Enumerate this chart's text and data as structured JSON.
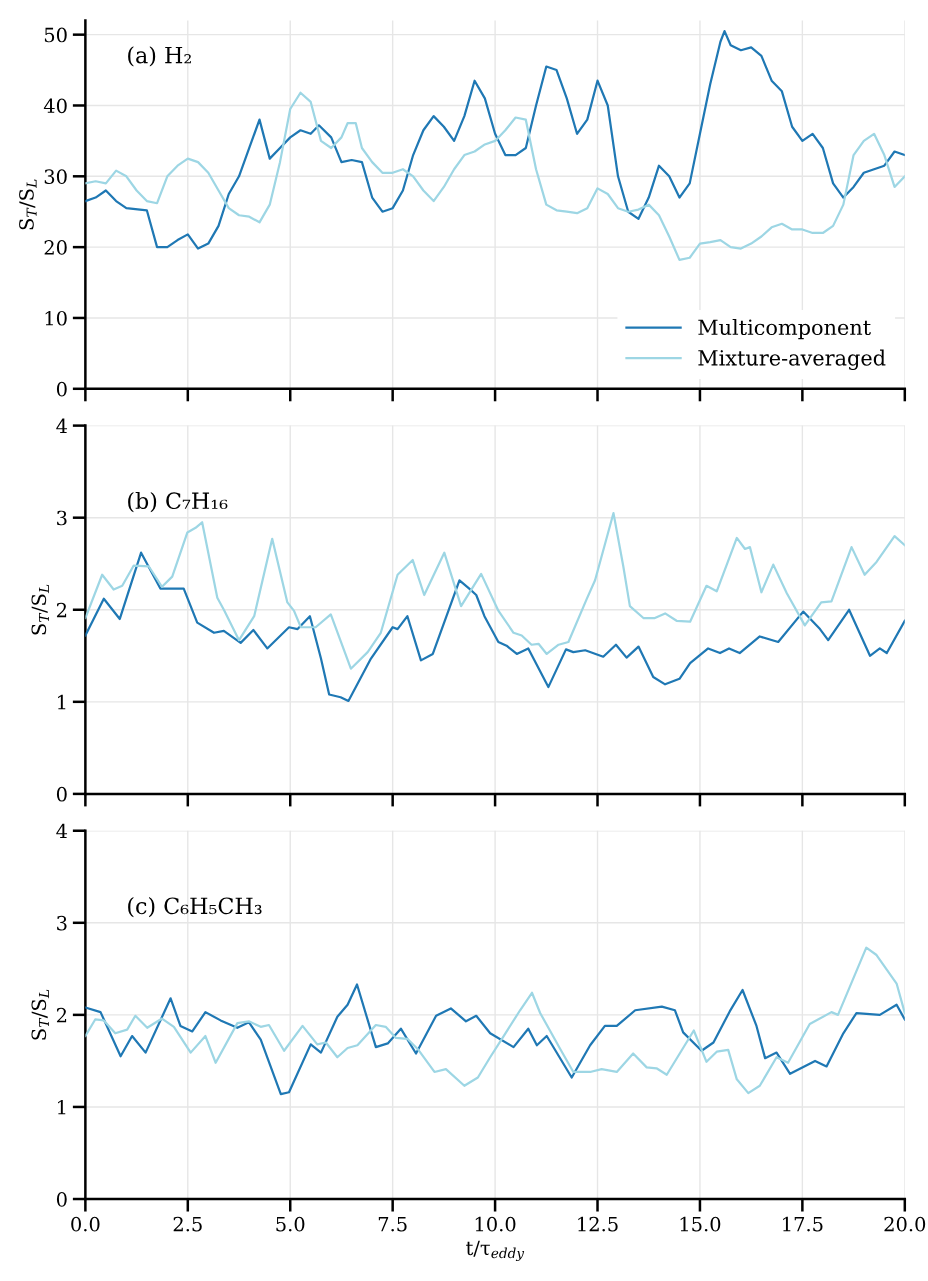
{
  "chart_data": [
    {
      "type": "line",
      "annotations": [
        "(a) H₂"
      ],
      "ylabel": "S$_{T}$/S$_{L}$",
      "xlim": [
        0,
        20
      ],
      "ylim": [
        0,
        52
      ],
      "yticks": [
        0,
        10,
        20,
        30,
        40,
        50
      ],
      "xticks": [
        {
          "value": 0,
          "label": null
        },
        {
          "value": 2.5,
          "label": null
        },
        {
          "value": 5,
          "label": null
        },
        {
          "value": 7.5,
          "label": null
        },
        {
          "value": 10,
          "label": null
        },
        {
          "value": 12.5,
          "label": null
        },
        {
          "value": 15,
          "label": null
        },
        {
          "value": 17.5,
          "label": null
        },
        {
          "value": 20,
          "label": null
        }
      ],
      "tick_labels": "y",
      "grid": true,
      "legend": "bottom right",
      "series": [
        {
          "name": "Multicomponent",
          "color": "#1f78b4",
          "x": [
            0,
            0.25,
            0.5,
            0.75,
            1.0,
            1.5,
            1.75,
            2.0,
            2.25,
            2.5,
            2.75,
            3.0,
            3.25,
            3.5,
            3.75,
            4.0,
            4.25,
            4.5,
            4.75,
            5.0,
            5.25,
            5.5,
            5.7,
            6.0,
            6.25,
            6.5,
            6.75,
            7.0,
            7.25,
            7.5,
            7.75,
            8.0,
            8.25,
            8.5,
            8.75,
            9.0,
            9.25,
            9.5,
            9.75,
            10.0,
            10.25,
            10.5,
            10.75,
            11.0,
            11.25,
            11.5,
            11.75,
            12.0,
            12.25,
            12.5,
            12.75,
            13.0,
            13.25,
            13.5,
            13.75,
            14.0,
            14.25,
            14.5,
            14.75,
            15.0,
            15.25,
            15.5,
            15.6,
            15.75,
            16.0,
            16.25,
            16.5,
            16.75,
            17.0,
            17.25,
            17.5,
            17.75,
            18.0,
            18.25,
            18.5,
            18.75,
            19.0,
            19.25,
            19.5,
            19.75,
            20.0
          ],
          "values": [
            26.5,
            27,
            28,
            26.5,
            25.5,
            25.2,
            20,
            20,
            21,
            21.8,
            19.8,
            20.5,
            23,
            27.5,
            30,
            34,
            38,
            32.5,
            34,
            35.5,
            36.5,
            36,
            37.2,
            35.5,
            32,
            32.3,
            32,
            27,
            25,
            25.5,
            28,
            33,
            36.5,
            38.5,
            37,
            35,
            38.5,
            43.5,
            41,
            36,
            33,
            33,
            34,
            40,
            45.5,
            45,
            41,
            36,
            38,
            43.5,
            40,
            30,
            25,
            24,
            27,
            31.5,
            30,
            27,
            29,
            36,
            43,
            49,
            50.5,
            48.5,
            47.8,
            48.2,
            47,
            43.5,
            42,
            37,
            35,
            36,
            34,
            29,
            27,
            28.5,
            30.5,
            31,
            31.5,
            33.5,
            33
          ]
        },
        {
          "name": "Mixture-averaged",
          "color": "#9dd6e4",
          "x": [
            0,
            0.25,
            0.5,
            0.75,
            1.0,
            1.25,
            1.5,
            1.75,
            2.0,
            2.25,
            2.5,
            2.75,
            3.0,
            3.25,
            3.5,
            3.75,
            4.0,
            4.25,
            4.5,
            4.75,
            5.0,
            5.25,
            5.5,
            5.75,
            6.0,
            6.25,
            6.4,
            6.6,
            6.75,
            7.0,
            7.25,
            7.5,
            7.75,
            8.0,
            8.25,
            8.5,
            8.75,
            9.0,
            9.25,
            9.5,
            9.75,
            10.0,
            10.25,
            10.5,
            10.75,
            11.0,
            11.25,
            11.5,
            11.75,
            12.0,
            12.25,
            12.5,
            12.75,
            13.0,
            13.25,
            13.5,
            13.75,
            14.0,
            14.25,
            14.5,
            14.75,
            15.0,
            15.25,
            15.5,
            15.75,
            16.0,
            16.25,
            16.5,
            16.75,
            17.0,
            17.25,
            17.5,
            17.75,
            18.0,
            18.25,
            18.5,
            18.75,
            19.0,
            19.25,
            19.5,
            19.75,
            20.0
          ],
          "values": [
            29,
            29.3,
            29,
            30.8,
            30,
            28,
            26.5,
            26.2,
            30,
            31.5,
            32.5,
            32,
            30.5,
            28,
            25.5,
            24.5,
            24.3,
            23.5,
            26,
            32,
            39.5,
            41.8,
            40.5,
            35,
            34,
            35.5,
            37.5,
            37.5,
            34,
            32,
            30.5,
            30.5,
            31,
            30,
            28,
            26.5,
            28.5,
            31,
            33,
            33.5,
            34.5,
            35,
            36.5,
            38.3,
            38,
            31,
            26,
            25.2,
            25,
            24.8,
            25.5,
            28.3,
            27.5,
            25.5,
            25,
            25.3,
            26,
            24.5,
            21.5,
            18.2,
            18.5,
            20.5,
            20.7,
            21,
            20,
            19.8,
            20.5,
            21.5,
            22.8,
            23.3,
            22.5,
            22.5,
            22,
            22,
            23,
            26,
            33,
            35,
            36,
            33,
            28.5,
            30
          ]
        }
      ]
    },
    {
      "type": "line",
      "annotations": [
        "(b) C₇H₁₆"
      ],
      "ylabel": "S$_{T}$/S$_{L}$",
      "xlim": [
        0,
        20
      ],
      "ylim": [
        0,
        4
      ],
      "yticks": [
        0,
        1,
        2,
        3,
        4
      ],
      "xticks": [
        {
          "value": 0,
          "label": null
        },
        {
          "value": 2.5,
          "label": null
        },
        {
          "value": 5,
          "label": null
        },
        {
          "value": 7.5,
          "label": null
        },
        {
          "value": 10,
          "label": null
        },
        {
          "value": 12.5,
          "label": null
        },
        {
          "value": 15,
          "label": null
        },
        {
          "value": 17.5,
          "label": null
        },
        {
          "value": 20,
          "label": null
        }
      ],
      "tick_labels": "y",
      "grid": true,
      "series": [
        {
          "color": "#1f78b4",
          "x": [
            0,
            0.45,
            0.84,
            1.36,
            1.83,
            2.4,
            2.73,
            3.14,
            3.38,
            3.79,
            4.1,
            4.44,
            4.97,
            5.18,
            5.48,
            5.75,
            5.95,
            6.23,
            6.42,
            6.97,
            7.5,
            7.62,
            7.86,
            8.19,
            8.48,
            9.13,
            9.37,
            9.54,
            9.74,
            10.08,
            10.28,
            10.53,
            10.81,
            11.3,
            11.73,
            11.91,
            12.2,
            12.64,
            12.95,
            13.21,
            13.5,
            13.86,
            14.15,
            14.5,
            14.76,
            15.2,
            15.49,
            15.71,
            15.97,
            16.46,
            16.91,
            17.52,
            17.93,
            18.13,
            18.64,
            19.15,
            19.39,
            19.56,
            20.0
          ],
          "values": [
            1.72,
            2.12,
            1.9,
            2.62,
            2.23,
            2.23,
            1.86,
            1.75,
            1.77,
            1.64,
            1.78,
            1.58,
            1.81,
            1.79,
            1.93,
            1.47,
            1.08,
            1.05,
            1.01,
            1.47,
            1.81,
            1.79,
            1.93,
            1.45,
            1.52,
            2.32,
            2.23,
            2.16,
            1.93,
            1.65,
            1.61,
            1.52,
            1.58,
            1.16,
            1.57,
            1.54,
            1.56,
            1.49,
            1.62,
            1.48,
            1.6,
            1.27,
            1.19,
            1.25,
            1.42,
            1.58,
            1.53,
            1.58,
            1.53,
            1.71,
            1.65,
            1.98,
            1.79,
            1.67,
            2.0,
            1.5,
            1.58,
            1.53,
            1.88
          ]
        },
        {
          "color": "#9dd6e4",
          "x": [
            0,
            0.41,
            0.69,
            0.9,
            1.18,
            1.55,
            1.87,
            2.12,
            2.49,
            2.69,
            2.85,
            3.22,
            3.38,
            3.75,
            4.12,
            4.56,
            4.93,
            5.09,
            5.26,
            5.62,
            5.99,
            6.48,
            6.89,
            7.21,
            7.62,
            7.99,
            8.27,
            8.76,
            9.17,
            9.66,
            10.08,
            10.45,
            10.65,
            10.89,
            11.06,
            11.26,
            11.55,
            11.79,
            12.23,
            12.44,
            12.89,
            13.13,
            13.29,
            13.62,
            13.9,
            14.15,
            14.43,
            14.76,
            15.16,
            15.41,
            15.9,
            16.1,
            16.22,
            16.5,
            16.79,
            17.12,
            17.56,
            17.96,
            18.21,
            18.7,
            19.02,
            19.31,
            19.75,
            20.0
          ],
          "values": [
            1.91,
            2.38,
            2.22,
            2.26,
            2.48,
            2.47,
            2.25,
            2.36,
            2.84,
            2.89,
            2.95,
            2.13,
            2.0,
            1.67,
            1.93,
            2.77,
            2.08,
            1.99,
            1.81,
            1.81,
            1.95,
            1.36,
            1.54,
            1.75,
            2.38,
            2.54,
            2.16,
            2.62,
            2.04,
            2.39,
            1.99,
            1.75,
            1.72,
            1.62,
            1.63,
            1.52,
            1.62,
            1.65,
            2.11,
            2.32,
            3.05,
            2.47,
            2.04,
            1.91,
            1.91,
            1.96,
            1.88,
            1.87,
            2.26,
            2.2,
            2.78,
            2.66,
            2.68,
            2.19,
            2.49,
            2.18,
            1.83,
            2.08,
            2.09,
            2.68,
            2.38,
            2.52,
            2.8,
            2.7
          ]
        }
      ]
    },
    {
      "type": "line",
      "annotations": [
        "(c) C₆H₅CH₃"
      ],
      "ylabel": "S$_{T}$/S$_{L}$",
      "xlabel": "t/τ$_{eddy}$",
      "xlim": [
        0,
        20
      ],
      "ylim": [
        0,
        4
      ],
      "yticks": [
        0,
        1,
        2,
        3,
        4
      ],
      "xticks": [
        {
          "value": 0,
          "label": "0.0"
        },
        {
          "value": 2.5,
          "label": "2.5"
        },
        {
          "value": 5,
          "label": "5.0"
        },
        {
          "value": 7.5,
          "label": "7.5"
        },
        {
          "value": 10,
          "label": "10.0"
        },
        {
          "value": 12.5,
          "label": "12.5"
        },
        {
          "value": 15,
          "label": "15.0"
        },
        {
          "value": 17.5,
          "label": "17.5"
        },
        {
          "value": 20,
          "label": "20.0"
        }
      ],
      "grid": true,
      "series": [
        {
          "color": "#1f78b4",
          "x": [
            0,
            0.37,
            0.86,
            1.14,
            1.47,
            2.08,
            2.32,
            2.61,
            2.93,
            3.3,
            3.71,
            3.99,
            4.28,
            4.77,
            4.97,
            5.5,
            5.75,
            6.15,
            6.4,
            6.63,
            7.09,
            7.38,
            7.7,
            8.07,
            8.56,
            8.92,
            9.29,
            9.54,
            9.88,
            10.45,
            10.81,
            11.02,
            11.26,
            11.87,
            12.32,
            12.68,
            12.97,
            13.42,
            14.07,
            14.39,
            14.59,
            15.04,
            15.33,
            15.73,
            16.04,
            16.38,
            16.59,
            16.87,
            17.2,
            17.81,
            18.09,
            18.5,
            18.82,
            19.39,
            19.8,
            20.0
          ],
          "values": [
            2.08,
            2.03,
            1.55,
            1.77,
            1.59,
            2.18,
            1.88,
            1.82,
            2.03,
            1.94,
            1.86,
            1.92,
            1.73,
            1.14,
            1.16,
            1.68,
            1.59,
            1.98,
            2.11,
            2.33,
            1.65,
            1.69,
            1.85,
            1.58,
            1.99,
            2.07,
            1.93,
            1.99,
            1.8,
            1.65,
            1.85,
            1.67,
            1.77,
            1.32,
            1.67,
            1.88,
            1.88,
            2.05,
            2.09,
            2.05,
            1.81,
            1.61,
            1.7,
            2.04,
            2.27,
            1.88,
            1.53,
            1.59,
            1.36,
            1.5,
            1.44,
            1.8,
            2.02,
            2.0,
            2.11,
            1.95
          ]
        },
        {
          "color": "#9dd6e4",
          "x": [
            0,
            0.24,
            0.45,
            0.73,
            1.02,
            1.22,
            1.51,
            1.87,
            2.16,
            2.57,
            2.93,
            3.18,
            3.71,
            3.99,
            4.28,
            4.48,
            4.85,
            5.3,
            5.66,
            5.87,
            6.15,
            6.4,
            6.64,
            7.09,
            7.33,
            7.58,
            7.86,
            8.11,
            8.52,
            8.8,
            9.25,
            9.58,
            9.88,
            10.21,
            10.61,
            10.9,
            11.1,
            11.59,
            11.91,
            12.32,
            12.6,
            12.97,
            13.37,
            13.7,
            13.94,
            14.19,
            14.85,
            15.16,
            15.41,
            15.69,
            15.9,
            16.18,
            16.46,
            16.87,
            17.15,
            17.68,
            18.21,
            18.37,
            19.06,
            19.31,
            19.8,
            20.0
          ],
          "values": [
            1.77,
            1.95,
            1.94,
            1.8,
            1.84,
            1.99,
            1.86,
            1.96,
            1.87,
            1.59,
            1.77,
            1.48,
            1.91,
            1.93,
            1.87,
            1.89,
            1.61,
            1.88,
            1.68,
            1.7,
            1.54,
            1.64,
            1.67,
            1.89,
            1.87,
            1.75,
            1.74,
            1.63,
            1.38,
            1.41,
            1.23,
            1.32,
            1.54,
            1.77,
            2.05,
            2.24,
            2.02,
            1.63,
            1.38,
            1.38,
            1.41,
            1.38,
            1.58,
            1.43,
            1.42,
            1.35,
            1.83,
            1.49,
            1.6,
            1.62,
            1.3,
            1.15,
            1.23,
            1.54,
            1.48,
            1.9,
            2.03,
            2.0,
            2.73,
            2.65,
            2.34,
            2.02
          ]
        }
      ]
    }
  ]
}
